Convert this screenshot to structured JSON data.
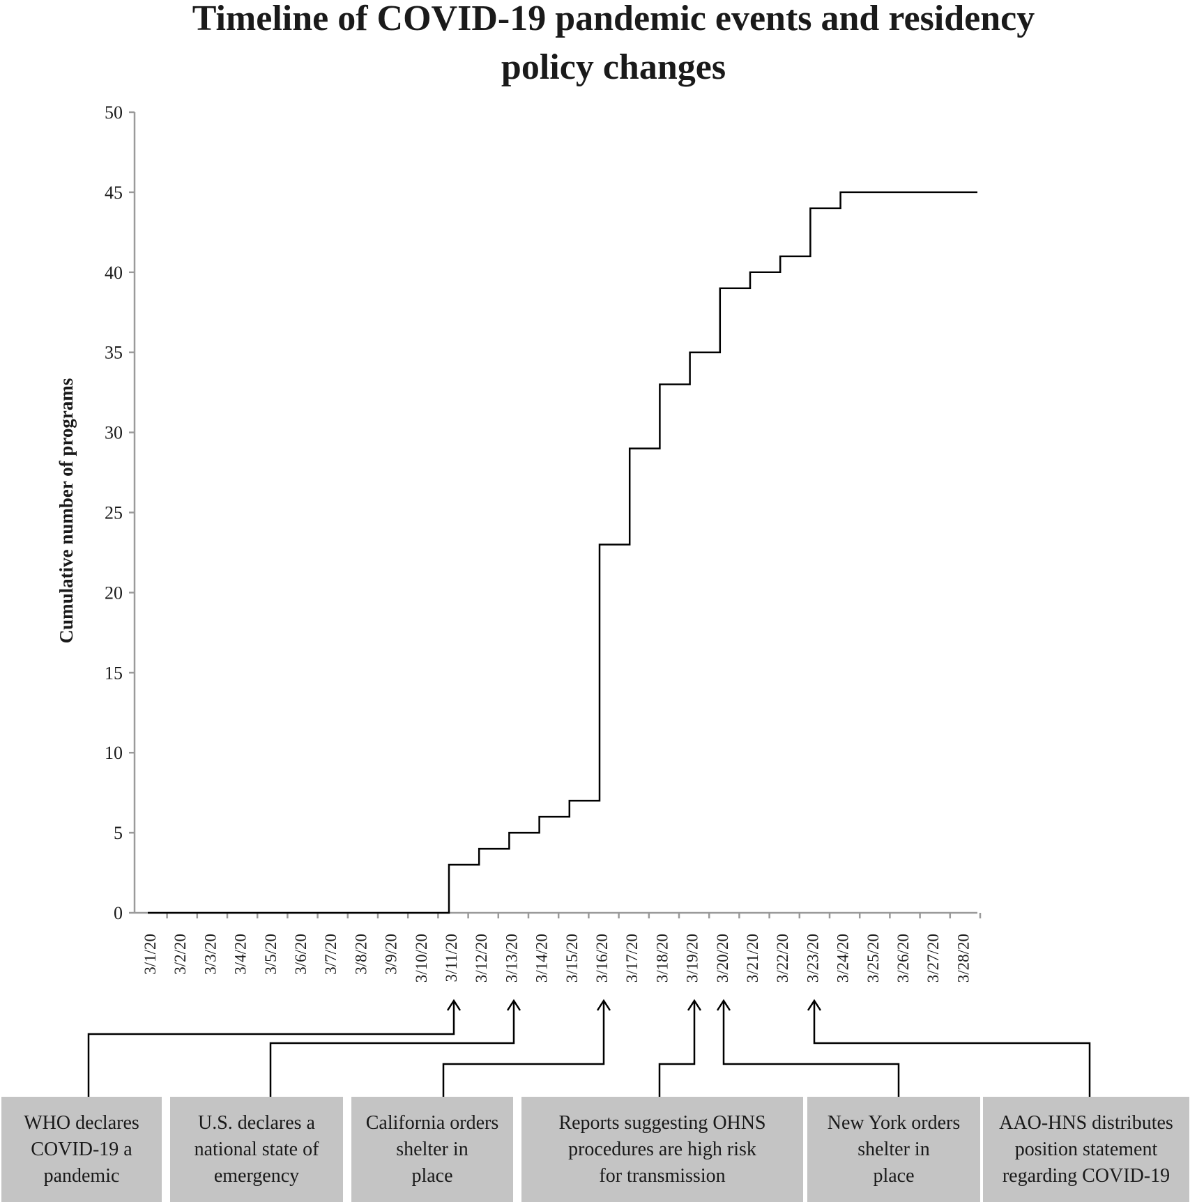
{
  "chart_data": {
    "type": "line",
    "step": true,
    "title_lines": [
      "Timeline of COVID-19 pandemic events and residency",
      "policy changes"
    ],
    "xlabel": "",
    "ylabel": "Cumulative number of programs",
    "ylim": [
      0,
      50
    ],
    "yticks": [
      0,
      5,
      10,
      15,
      20,
      25,
      30,
      35,
      40,
      45,
      50
    ],
    "categories": [
      "3/1/20",
      "3/2/20",
      "3/3/20",
      "3/4/20",
      "3/5/20",
      "3/6/20",
      "3/7/20",
      "3/8/20",
      "3/9/20",
      "3/10/20",
      "3/11/20",
      "3/12/20",
      "3/13/20",
      "3/14/20",
      "3/15/20",
      "3/16/20",
      "3/17/20",
      "3/18/20",
      "3/19/20",
      "3/20/20",
      "3/21/20",
      "3/22/20",
      "3/23/20",
      "3/24/20",
      "3/25/20",
      "3/26/20",
      "3/27/20",
      "3/28/20"
    ],
    "values": [
      0,
      0,
      0,
      0,
      0,
      0,
      0,
      0,
      0,
      0,
      3,
      4,
      5,
      6,
      7,
      23,
      29,
      33,
      35,
      39,
      40,
      41,
      44,
      45,
      45,
      45,
      45,
      45
    ],
    "grid": false,
    "legend": "none",
    "line_color": "#000000",
    "events": [
      {
        "date": "3/11/20",
        "label_lines": [
          "WHO declares",
          "COVID-19 a",
          "pandemic"
        ]
      },
      {
        "date": "3/13/20",
        "label_lines": [
          "U.S. declares a",
          "national state of",
          "emergency"
        ]
      },
      {
        "date": "3/16/20",
        "label_lines": [
          "California orders",
          "shelter in",
          "place"
        ]
      },
      {
        "date": "3/19/20",
        "label_lines": [
          "Reports suggesting OHNS",
          "procedures are high risk",
          "for transmission"
        ]
      },
      {
        "date": "3/20/20",
        "label_lines": [
          "New York orders",
          "shelter in",
          "place"
        ]
      },
      {
        "date": "3/23/20",
        "label_lines": [
          "AAO-HNS distributes",
          "position statement",
          "regarding COVID-19"
        ]
      }
    ]
  },
  "colors": {
    "box_fill": "#c4c4c4",
    "axis": "#9a9a9a",
    "line": "#000000"
  }
}
